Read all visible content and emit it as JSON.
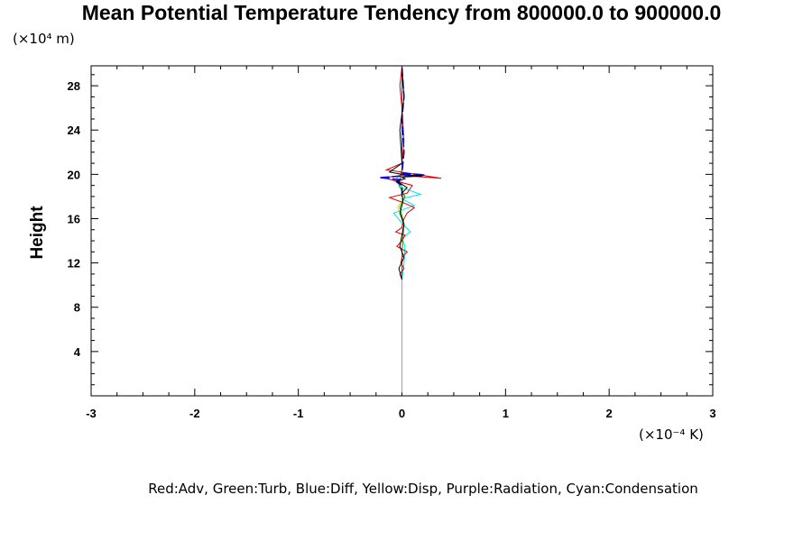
{
  "chart_data": {
    "type": "line",
    "title": "Mean Potential Temperature Tendency from 800000.0 to 900000.0",
    "ylabel": "Height",
    "yunit": "(×10⁴ m)",
    "xunit": "(×10⁻⁴ K)",
    "legend_text": "Red:Adv, Green:Turb, Blue:Diff, Yellow:Disp, Purple:Radiation, Cyan:Condensation",
    "xlim": [
      -3,
      3
    ],
    "ylim": [
      0,
      29.8
    ],
    "xticks": [
      -3,
      -2,
      -1,
      0,
      1,
      2,
      3
    ],
    "yticks": [
      4,
      8,
      12,
      16,
      20,
      24,
      28
    ],
    "grid": false,
    "series": [
      {
        "name": "Cyan:Condensation",
        "color": "#00e5e5",
        "x": [
          0,
          0,
          0.02,
          0.03,
          0.0,
          0.08,
          0.0,
          -0.08,
          0.12,
          0.0,
          0.18,
          0.0,
          -0.06,
          0.0,
          0.0
        ],
        "y": [
          0.3,
          10.5,
          12.0,
          13.5,
          14.2,
          14.8,
          15.6,
          16.5,
          17.2,
          17.8,
          18.2,
          18.8,
          19.5,
          20.2,
          29.7
        ]
      },
      {
        "name": "Yellow:Disp",
        "color": "#d8d800",
        "x": [
          0.0,
          0.0,
          -0.04,
          0.02,
          0.0,
          0.0
        ],
        "y": [
          15.0,
          16.0,
          17.0,
          18.0,
          19.0,
          20.0
        ]
      },
      {
        "name": "Green:Turb",
        "color": "#00a000",
        "x": [
          0.0,
          0.0,
          0.02,
          -0.02,
          0.03,
          -0.03,
          0.0,
          0.0
        ],
        "y": [
          10.5,
          13.0,
          15.5,
          17.0,
          18.0,
          19.0,
          20.5,
          29.7
        ]
      },
      {
        "name": "Red:Adv",
        "color": "#e00000",
        "x": [
          0.0,
          -0.02,
          0.02,
          -0.01,
          0.0,
          0.05,
          -0.05,
          0.0,
          0.03,
          -0.06,
          0.0,
          0.02,
          0.05,
          0.12,
          0.0,
          -0.12,
          0.05,
          0.1,
          -0.18,
          0.0,
          0.38,
          0.0,
          -0.15,
          0.0,
          0.02,
          0.0,
          -0.02,
          0.0
        ],
        "y": [
          10.5,
          11.0,
          11.5,
          12.0,
          12.5,
          13.0,
          13.5,
          14.0,
          14.5,
          14.8,
          15.2,
          16.0,
          16.5,
          17.0,
          17.5,
          17.9,
          18.3,
          19.0,
          19.7,
          19.9,
          19.65,
          20.2,
          20.4,
          21.0,
          23.0,
          26.0,
          28.0,
          29.7
        ]
      },
      {
        "name": "Blue:Diff",
        "color": "#0000e0",
        "x": [
          0.0,
          0.0,
          -0.05,
          0.0,
          -0.22,
          0.0,
          0.22,
          0.0,
          0.02,
          0.0,
          0.02,
          0.0
        ],
        "y": [
          18.0,
          19.0,
          19.3,
          19.5,
          19.7,
          19.85,
          19.95,
          20.1,
          22.0,
          25.0,
          27.0,
          29.7
        ]
      },
      {
        "name": "Black",
        "color": "#000000",
        "x": [
          0.0,
          -0.03,
          0.02,
          -0.02,
          0.0,
          0.02,
          -0.02,
          0.01,
          0.0,
          0.05,
          0.0,
          -0.05,
          0.03,
          0.0,
          0.2,
          0.0,
          -0.12,
          0.0,
          -0.02,
          0.02,
          0.0
        ],
        "y": [
          10.5,
          11.5,
          12.5,
          13.5,
          14.5,
          15.5,
          16.5,
          17.5,
          18.3,
          18.8,
          19.1,
          19.4,
          19.6,
          19.75,
          19.85,
          20.0,
          20.2,
          21.0,
          24.0,
          27.0,
          29.7
        ]
      }
    ]
  }
}
